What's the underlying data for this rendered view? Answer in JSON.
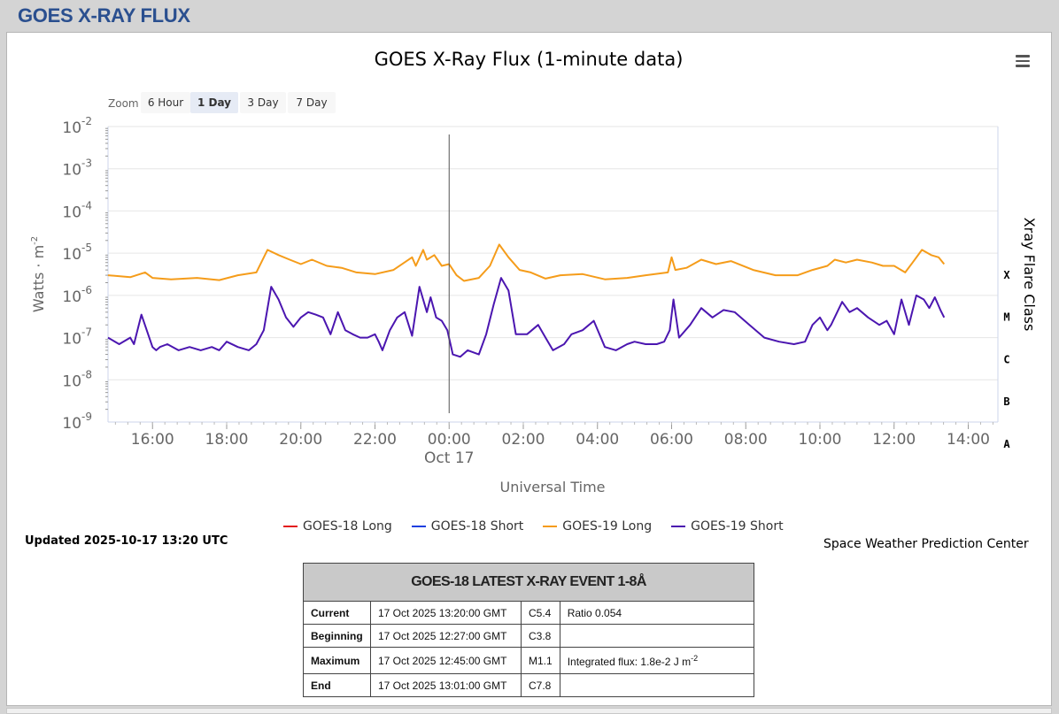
{
  "page": {
    "title": "GOES X-RAY FLUX"
  },
  "chart_data": {
    "type": "line",
    "title": "GOES X-Ray Flux (1-minute data)",
    "xlabel": "Universal Time",
    "ylabel": "Watts · m",
    "ylabel_sup": "-2",
    "y2label": "Xray Flare Class",
    "yscale": "log",
    "ylim": [
      1e-09,
      0.01
    ],
    "y_ticks": [
      {
        "base": "10",
        "exp": "-2"
      },
      {
        "base": "10",
        "exp": "-3"
      },
      {
        "base": "10",
        "exp": "-4"
      },
      {
        "base": "10",
        "exp": "-5"
      },
      {
        "base": "10",
        "exp": "-6"
      },
      {
        "base": "10",
        "exp": "-7"
      },
      {
        "base": "10",
        "exp": "-8"
      },
      {
        "base": "10",
        "exp": "-9"
      }
    ],
    "x_range_hours": [
      -9.2,
      14.8
    ],
    "x_ticks": [
      {
        "hour": -8,
        "label": "16:00"
      },
      {
        "hour": -6,
        "label": "18:00"
      },
      {
        "hour": -4,
        "label": "20:00"
      },
      {
        "hour": -2,
        "label": "22:00"
      },
      {
        "hour": 0,
        "label": "00:00",
        "sublabel": "Oct 17"
      },
      {
        "hour": 2,
        "label": "02:00"
      },
      {
        "hour": 4,
        "label": "04:00"
      },
      {
        "hour": 6,
        "label": "06:00"
      },
      {
        "hour": 8,
        "label": "08:00"
      },
      {
        "hour": 10,
        "label": "10:00"
      },
      {
        "hour": 12,
        "label": "12:00"
      },
      {
        "hour": 14,
        "label": "14:00"
      }
    ],
    "flare_classes": [
      {
        "label": "X",
        "at": 3.5
      },
      {
        "label": "M",
        "at": 4.5
      },
      {
        "label": "C",
        "at": 5.5
      },
      {
        "label": "B",
        "at": 6.5
      },
      {
        "label": "A",
        "at": 7.5
      }
    ],
    "grid": true,
    "legend_position": "bottom",
    "series": [
      {
        "name": "GOES-18 Long",
        "color": "#e31a1c",
        "x": [],
        "y": []
      },
      {
        "name": "GOES-18 Short",
        "color": "#1f3fe0",
        "x": [],
        "y": []
      },
      {
        "name": "GOES-19 Long",
        "color": "#f59c1a",
        "x": [
          -9.2,
          -8.6,
          -8.2,
          -8.0,
          -7.5,
          -6.8,
          -6.2,
          -5.7,
          -5.2,
          -4.9,
          -4.6,
          -4.3,
          -4.0,
          -3.7,
          -3.3,
          -2.9,
          -2.5,
          -2.0,
          -1.5,
          -1.0,
          -0.9,
          -0.7,
          -0.6,
          -0.4,
          -0.2,
          0.0,
          0.2,
          0.4,
          0.8,
          1.1,
          1.35,
          1.6,
          1.9,
          2.2,
          2.6,
          3.0,
          3.6,
          4.2,
          4.8,
          5.3,
          5.9,
          6.0,
          6.1,
          6.4,
          6.8,
          7.2,
          7.6,
          8.2,
          8.8,
          9.4,
          9.8,
          10.2,
          10.4,
          10.7,
          11.0,
          11.4,
          11.7,
          12.0,
          12.3,
          12.5,
          12.75,
          13.0,
          13.2,
          13.35
        ],
        "y": [
          3e-06,
          2.7e-06,
          3.5e-06,
          2.6e-06,
          2.4e-06,
          2.6e-06,
          2.3e-06,
          3e-06,
          3.5e-06,
          1.2e-05,
          9e-06,
          7e-06,
          5.5e-06,
          7e-06,
          5e-06,
          4.5e-06,
          3.5e-06,
          3.2e-06,
          4e-06,
          8e-06,
          5e-06,
          1.2e-05,
          7e-06,
          9e-06,
          5e-06,
          5.5e-06,
          3e-06,
          2.2e-06,
          2.6e-06,
          5e-06,
          1.6e-05,
          8e-06,
          4e-06,
          3.5e-06,
          2.5e-06,
          3e-06,
          3.2e-06,
          2.4e-06,
          2.6e-06,
          3e-06,
          3.5e-06,
          8e-06,
          4e-06,
          4.5e-06,
          7e-06,
          5.5e-06,
          6.5e-06,
          4e-06,
          3e-06,
          3e-06,
          4e-06,
          5e-06,
          7e-06,
          6e-06,
          7e-06,
          6e-06,
          5e-06,
          5e-06,
          3.5e-06,
          6e-06,
          1.2e-05,
          9e-06,
          8e-06,
          5.5e-06
        ]
      },
      {
        "name": "GOES-19 Short",
        "color": "#4b16b0",
        "x": [
          -9.2,
          -8.9,
          -8.6,
          -8.5,
          -8.3,
          -8.0,
          -7.9,
          -7.8,
          -7.6,
          -7.3,
          -7.0,
          -6.7,
          -6.4,
          -6.2,
          -6.0,
          -5.7,
          -5.4,
          -5.2,
          -5.0,
          -4.8,
          -4.6,
          -4.4,
          -4.2,
          -4.0,
          -3.8,
          -3.6,
          -3.4,
          -3.2,
          -3.0,
          -2.8,
          -2.6,
          -2.4,
          -2.2,
          -2.0,
          -1.9,
          -1.8,
          -1.6,
          -1.4,
          -1.2,
          -1.0,
          -0.8,
          -0.6,
          -0.5,
          -0.35,
          -0.2,
          -0.05,
          0.1,
          0.3,
          0.5,
          0.8,
          1.0,
          1.2,
          1.4,
          1.6,
          1.8,
          2.1,
          2.4,
          2.6,
          2.8,
          3.1,
          3.3,
          3.6,
          3.9,
          4.2,
          4.5,
          4.8,
          5.0,
          5.3,
          5.6,
          5.8,
          5.95,
          6.05,
          6.2,
          6.5,
          6.8,
          7.1,
          7.4,
          7.7,
          8.1,
          8.5,
          8.9,
          9.3,
          9.6,
          9.8,
          10.0,
          10.2,
          10.3,
          10.6,
          10.8,
          11.0,
          11.3,
          11.6,
          11.8,
          12.0,
          12.2,
          12.4,
          12.6,
          12.8,
          12.95,
          13.1,
          13.25,
          13.35
        ],
        "y": [
          1e-07,
          7e-08,
          1e-07,
          7e-08,
          3.5e-07,
          6e-08,
          5e-08,
          6e-08,
          7e-08,
          5e-08,
          6e-08,
          5e-08,
          6e-08,
          5e-08,
          8e-08,
          6e-08,
          5e-08,
          7e-08,
          1.5e-07,
          1.6e-06,
          8e-07,
          3e-07,
          1.8e-07,
          3e-07,
          4e-07,
          3.5e-07,
          3e-07,
          1.2e-07,
          4e-07,
          1.5e-07,
          1.2e-07,
          1e-07,
          1e-07,
          1.2e-07,
          8e-08,
          5e-08,
          1.5e-07,
          3e-07,
          4e-07,
          1.1e-07,
          1.6e-06,
          4e-07,
          9e-07,
          3e-07,
          2.5e-07,
          1.5e-07,
          4e-08,
          3.5e-08,
          5e-08,
          4e-08,
          1.2e-07,
          6e-07,
          2.6e-06,
          1.3e-06,
          1.2e-07,
          1.2e-07,
          2e-07,
          1e-07,
          5e-08,
          7e-08,
          1.2e-07,
          1.5e-07,
          2.5e-07,
          6e-08,
          5e-08,
          7e-08,
          8e-08,
          7e-08,
          7e-08,
          8e-08,
          1.5e-07,
          8e-07,
          1e-07,
          2e-07,
          5e-07,
          3e-07,
          4.5e-07,
          4e-07,
          2e-07,
          1e-07,
          8e-08,
          7e-08,
          8e-08,
          2e-07,
          3e-07,
          1.5e-07,
          2e-07,
          7e-07,
          4e-07,
          5e-07,
          3e-07,
          2e-07,
          2.5e-07,
          1.2e-07,
          8e-07,
          2e-07,
          1e-06,
          8e-07,
          5e-07,
          9e-07,
          4.5e-07,
          3e-07
        ]
      }
    ],
    "crosshair_hour": 0
  },
  "zoom": {
    "label": "Zoom",
    "buttons": [
      {
        "label": "6 Hour",
        "selected": false
      },
      {
        "label": "1 Day",
        "selected": true
      },
      {
        "label": "3 Day",
        "selected": false
      },
      {
        "label": "7 Day",
        "selected": false
      }
    ]
  },
  "updated": "Updated 2025-10-17 13:20 UTC",
  "credit": "Space Weather Prediction Center",
  "event_table": {
    "title": "GOES-18 LATEST X-RAY EVENT 1-8Å",
    "rows": [
      {
        "label": "Current",
        "time": "17 Oct 2025 13:20:00 GMT",
        "class": "C5.4",
        "extra": "Ratio 0.054",
        "extra_sup": ""
      },
      {
        "label": "Beginning",
        "time": "17 Oct 2025 12:27:00 GMT",
        "class": "C3.8",
        "extra": "",
        "extra_sup": ""
      },
      {
        "label": "Maximum",
        "time": "17 Oct 2025 12:45:00 GMT",
        "class": "M1.1",
        "extra": "Integrated flux: 1.8e-2 J m",
        "extra_sup": "-2"
      },
      {
        "label": "End",
        "time": "17 Oct 2025 13:01:00 GMT",
        "class": "C7.8",
        "extra": "",
        "extra_sup": ""
      }
    ]
  }
}
